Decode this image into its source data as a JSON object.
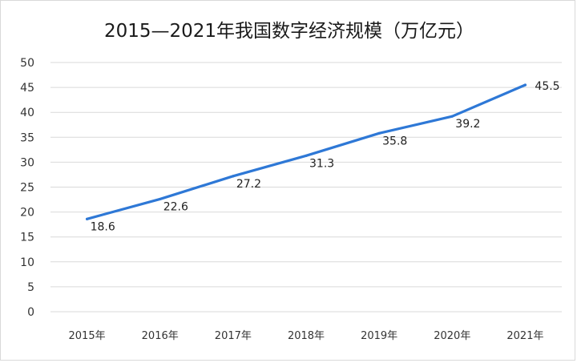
{
  "chart_data": {
    "type": "line",
    "title": "2015—2021年我国数字经济规模（万亿元）",
    "categories": [
      "2015年",
      "2016年",
      "2017年",
      "2018年",
      "2019年",
      "2020年",
      "2021年"
    ],
    "series": [
      {
        "values": [
          18.6,
          22.6,
          27.2,
          31.3,
          35.8,
          39.2,
          45.5
        ]
      }
    ],
    "ylim": [
      0,
      50
    ],
    "yticks": [
      "0",
      "5",
      "10",
      "15",
      "20",
      "25",
      "30",
      "35",
      "40",
      "45",
      "50"
    ],
    "data_labels": [
      "18.6",
      "22.6",
      "27.2",
      "31.3",
      "35.8",
      "39.2",
      "45.5"
    ],
    "grid": true,
    "legend": "none",
    "colors": {
      "line": "#2e78d6",
      "grid": "#d9d9d9"
    }
  }
}
